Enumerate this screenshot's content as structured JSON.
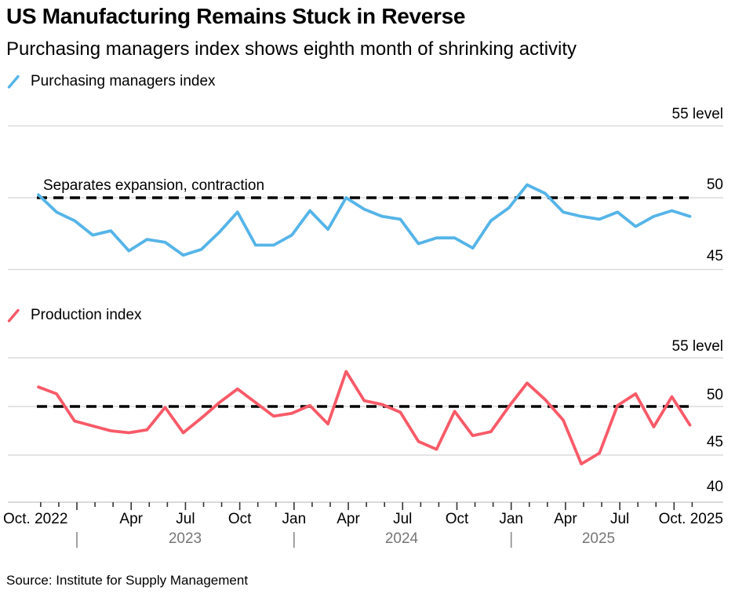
{
  "header": {
    "title": "US Manufacturing Remains Stuck in Reverse",
    "subtitle": "Purchasing managers index shows eighth month of shrinking activity"
  },
  "source_note": "Source: Institute for Supply Management",
  "colors": {
    "pmi_line": "#55b4e8",
    "production_line": "#f85a68",
    "reference_dash": "#000000",
    "gridline": "#d4d4d4",
    "axis_line": "#c4c4c4",
    "tick": "#333333",
    "year_label": "#767676"
  },
  "chart_data": [
    {
      "type": "line",
      "series_name": "Purchasing managers index",
      "annotation": "Separates expansion, contraction",
      "reference_line_value": 50,
      "grid": true,
      "ylim": [
        44,
        56
      ],
      "yticks": [
        45,
        50,
        55
      ],
      "ytick_labels": [
        "45",
        "50",
        "55 level"
      ],
      "x": [
        "Oct 2022",
        "Nov 2022",
        "Dec 2022",
        "Jan 2023",
        "Feb 2023",
        "Mar 2023",
        "Apr 2023",
        "May 2023",
        "Jun 2023",
        "Jul 2023",
        "Aug 2023",
        "Sep 2023",
        "Oct 2023",
        "Nov 2023",
        "Dec 2023",
        "Jan 2024",
        "Feb 2024",
        "Mar 2024",
        "Apr 2024",
        "May 2024",
        "Jun 2024",
        "Jul 2024",
        "Aug 2024",
        "Sep 2024",
        "Oct 2024",
        "Nov 2024",
        "Dec 2024",
        "Jan 2025",
        "Feb 2025",
        "Mar 2025",
        "Apr 2025",
        "May 2025",
        "Jun 2025",
        "Jul 2025",
        "Aug 2025",
        "Sep 2025",
        "Oct 2025"
      ],
      "values": [
        50.2,
        49.0,
        48.4,
        47.4,
        47.7,
        46.3,
        47.1,
        46.9,
        46.0,
        46.4,
        47.6,
        49.0,
        46.7,
        46.7,
        47.4,
        49.1,
        47.8,
        50.0,
        49.2,
        48.7,
        48.5,
        46.8,
        47.2,
        47.2,
        46.5,
        48.4,
        49.3,
        50.9,
        50.3,
        49.0,
        48.7,
        48.5,
        49.0,
        48.0,
        48.7,
        49.1,
        48.7
      ]
    },
    {
      "type": "line",
      "series_name": "Production index",
      "annotation": "",
      "reference_line_value": 50,
      "grid": true,
      "ylim": [
        39,
        56
      ],
      "yticks": [
        40,
        45,
        50,
        55
      ],
      "ytick_labels": [
        "40",
        "45",
        "50",
        "55 level"
      ],
      "x": [
        "Oct 2022",
        "Nov 2022",
        "Dec 2022",
        "Jan 2023",
        "Feb 2023",
        "Mar 2023",
        "Apr 2023",
        "May 2023",
        "Jun 2023",
        "Jul 2023",
        "Aug 2023",
        "Sep 2023",
        "Oct 2023",
        "Nov 2023",
        "Dec 2023",
        "Jan 2024",
        "Feb 2024",
        "Mar 2024",
        "Apr 2024",
        "May 2024",
        "Jun 2024",
        "Jul 2024",
        "Aug 2024",
        "Sep 2024",
        "Oct 2024",
        "Nov 2024",
        "Dec 2024",
        "Jan 2025",
        "Feb 2025",
        "Mar 2025",
        "Apr 2025",
        "May 2025",
        "Jun 2025",
        "Jul 2025",
        "Aug 2025",
        "Sep 2025",
        "Oct 2025"
      ],
      "values": [
        52.0,
        51.3,
        48.5,
        48.0,
        47.5,
        47.3,
        47.6,
        49.9,
        47.3,
        48.8,
        50.4,
        51.8,
        50.4,
        49.0,
        49.3,
        50.1,
        48.2,
        53.6,
        50.6,
        50.2,
        49.4,
        46.4,
        45.6,
        49.5,
        47.0,
        47.4,
        50.0,
        52.4,
        50.7,
        48.6,
        44.1,
        45.2,
        50.1,
        51.3,
        47.9,
        51.0,
        48.1
      ]
    }
  ],
  "xaxis": {
    "tick_labels": [
      "Oct. 2022",
      "Apr",
      "Jul",
      "Oct",
      "Jan",
      "Apr",
      "Jul",
      "Oct",
      "Jan",
      "Apr",
      "Jul",
      "Oct. 2025"
    ],
    "year_labels": [
      "2023",
      "2024",
      "2025"
    ]
  }
}
